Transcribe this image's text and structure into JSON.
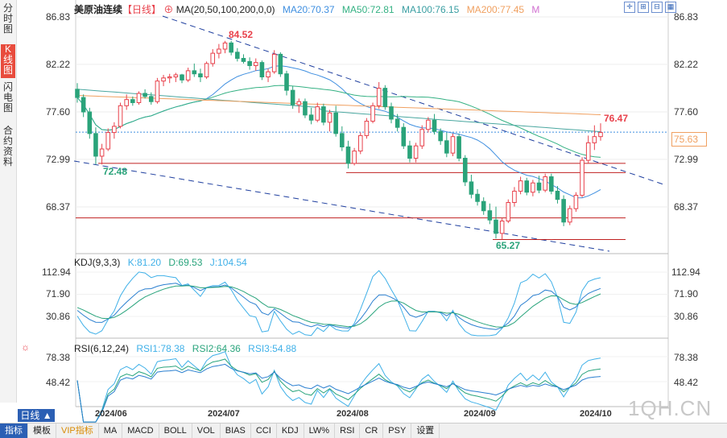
{
  "side_tabs": [
    "分时图",
    "K线图",
    "闪电图",
    "合约资料"
  ],
  "header": {
    "name": "美原油连续",
    "period": "【日线】",
    "ma_label": "MA(20,50,100,200,0,0)",
    "ma20": "MA20:70.37",
    "ma50": "MA50:72.81",
    "ma100": "MA100:76.15",
    "ma200": "MA200:77.45",
    "ma_extra": "M"
  },
  "price_axis": [
    "86.83",
    "82.22",
    "77.60",
    "72.99",
    "68.37"
  ],
  "current_price": "75.63",
  "annotations": {
    "high": "84.52",
    "low1": "72.48",
    "low2": "65.27",
    "recent_high": "76.47"
  },
  "kdj": {
    "label": "KDJ(9,3,3)",
    "k": "K:81.20",
    "d": "D:69.53",
    "j": "J:104.54",
    "axis": [
      "112.94",
      "71.90",
      "30.86"
    ]
  },
  "rsi": {
    "label": "RSI(6,12,24)",
    "rsi1": "RSI1:78.38",
    "rsi2": "RSI2:64.36",
    "rsi3": "RSI3:54.88",
    "axis": [
      "78.38",
      "48.42"
    ]
  },
  "x_axis": [
    "2024/06",
    "2024/07",
    "2024/08",
    "2024/09",
    "2024/10"
  ],
  "period_button": "日线 ▲",
  "bottom_tabs": [
    "指标",
    "模板",
    "VIP指标",
    "MA",
    "MACD",
    "BOLL",
    "VOL",
    "BIAS",
    "CCI",
    "KDJ",
    "LW%",
    "RSI",
    "CR",
    "PSY",
    "设置"
  ],
  "watermark": "1QH.CN",
  "colors": {
    "up": "#e8414b",
    "down": "#2aa37a",
    "ma20": "#3f8fe0",
    "ma50": "#34b183",
    "ma100": "#4aa7a0",
    "ma200": "#f0a060",
    "k": "#3fb0e8",
    "d": "#29a47c",
    "j": "#3fb0e8"
  },
  "candles": [
    [
      79.8,
      80.4,
      78.5,
      79.0
    ],
    [
      79.0,
      79.3,
      77.1,
      77.6
    ],
    [
      77.6,
      78.0,
      75.0,
      75.5
    ],
    [
      75.5,
      76.1,
      72.5,
      73.3
    ],
    [
      73.3,
      74.5,
      72.5,
      74.0
    ],
    [
      74.0,
      76.0,
      73.8,
      75.6
    ],
    [
      75.6,
      76.6,
      75.0,
      76.2
    ],
    [
      76.2,
      78.5,
      76.0,
      78.2
    ],
    [
      78.2,
      79.3,
      77.8,
      78.8
    ],
    [
      78.8,
      79.1,
      78.2,
      78.5
    ],
    [
      78.5,
      79.6,
      78.3,
      79.4
    ],
    [
      79.4,
      79.8,
      78.9,
      79.1
    ],
    [
      79.1,
      79.5,
      78.3,
      78.6
    ],
    [
      78.6,
      80.9,
      78.4,
      80.6
    ],
    [
      80.6,
      81.2,
      80.1,
      80.9
    ],
    [
      80.9,
      81.3,
      80.4,
      81.0
    ],
    [
      81.0,
      81.4,
      80.5,
      81.2
    ],
    [
      81.2,
      81.3,
      80.4,
      80.7
    ],
    [
      80.7,
      81.9,
      80.5,
      81.6
    ],
    [
      81.6,
      82.3,
      81.0,
      81.3
    ],
    [
      81.3,
      81.8,
      80.5,
      81.0
    ],
    [
      81.0,
      82.5,
      80.8,
      82.3
    ],
    [
      82.3,
      83.7,
      82.0,
      83.3
    ],
    [
      83.3,
      84.2,
      82.8,
      83.7
    ],
    [
      83.7,
      84.5,
      83.3,
      84.3
    ],
    [
      84.3,
      84.5,
      83.1,
      83.4
    ],
    [
      83.4,
      83.8,
      82.5,
      82.8
    ],
    [
      82.8,
      83.2,
      82.3,
      82.5
    ],
    [
      82.5,
      82.9,
      81.7,
      82.1
    ],
    [
      82.1,
      82.8,
      81.6,
      82.4
    ],
    [
      82.4,
      82.6,
      80.7,
      81.0
    ],
    [
      81.0,
      81.8,
      80.5,
      81.5
    ],
    [
      81.5,
      83.6,
      81.3,
      83.2
    ],
    [
      83.2,
      83.4,
      81.0,
      81.3
    ],
    [
      81.3,
      81.6,
      79.2,
      79.7
    ],
    [
      79.7,
      80.1,
      77.9,
      78.3
    ],
    [
      78.3,
      78.9,
      77.5,
      78.6
    ],
    [
      78.6,
      78.9,
      77.0,
      77.3
    ],
    [
      77.3,
      78.0,
      76.4,
      76.8
    ],
    [
      76.8,
      78.5,
      76.6,
      78.1
    ],
    [
      78.1,
      78.4,
      76.3,
      76.6
    ],
    [
      76.6,
      77.8,
      75.7,
      77.5
    ],
    [
      77.5,
      78.2,
      75.2,
      75.5
    ],
    [
      75.5,
      76.2,
      73.8,
      74.2
    ],
    [
      74.2,
      74.8,
      72.1,
      72.6
    ],
    [
      72.6,
      74.1,
      72.4,
      73.8
    ],
    [
      73.8,
      75.6,
      73.5,
      75.3
    ],
    [
      75.3,
      77.0,
      75.0,
      76.7
    ],
    [
      76.7,
      78.5,
      76.5,
      78.2
    ],
    [
      78.2,
      80.5,
      77.9,
      79.9
    ],
    [
      79.9,
      80.2,
      77.8,
      78.1
    ],
    [
      78.1,
      78.5,
      76.5,
      76.9
    ],
    [
      76.9,
      77.4,
      75.7,
      76.1
    ],
    [
      76.1,
      76.5,
      74.0,
      74.3
    ],
    [
      74.3,
      74.8,
      72.7,
      73.1
    ],
    [
      73.1,
      74.6,
      72.7,
      74.3
    ],
    [
      74.3,
      76.3,
      74.0,
      75.9
    ],
    [
      75.9,
      77.1,
      75.6,
      76.8
    ],
    [
      76.8,
      77.4,
      75.4,
      75.7
    ],
    [
      75.7,
      76.0,
      74.4,
      74.8
    ],
    [
      74.8,
      75.6,
      73.2,
      73.6
    ],
    [
      73.6,
      75.5,
      73.3,
      75.2
    ],
    [
      75.2,
      75.5,
      72.8,
      73.1
    ],
    [
      73.1,
      73.4,
      70.4,
      70.8
    ],
    [
      70.8,
      71.5,
      69.2,
      69.6
    ],
    [
      69.6,
      70.1,
      68.5,
      68.9
    ],
    [
      68.9,
      69.3,
      67.6,
      68.0
    ],
    [
      68.0,
      68.7,
      66.7,
      67.1
    ],
    [
      67.1,
      68.4,
      65.3,
      65.8
    ],
    [
      65.8,
      67.3,
      65.2,
      67.0
    ],
    [
      67.0,
      69.1,
      66.8,
      68.8
    ],
    [
      68.8,
      70.3,
      68.4,
      69.9
    ],
    [
      69.9,
      71.3,
      69.6,
      70.9
    ],
    [
      70.9,
      71.2,
      69.5,
      69.8
    ],
    [
      69.8,
      71.0,
      69.4,
      70.7
    ],
    [
      70.7,
      71.4,
      69.7,
      70.0
    ],
    [
      70.0,
      71.6,
      69.8,
      71.3
    ],
    [
      71.3,
      71.6,
      69.6,
      69.9
    ],
    [
      69.9,
      70.4,
      68.7,
      69.1
    ],
    [
      69.1,
      69.5,
      66.5,
      66.9
    ],
    [
      66.9,
      68.5,
      66.6,
      68.2
    ],
    [
      68.2,
      69.8,
      67.9,
      69.5
    ],
    [
      69.5,
      73.2,
      69.3,
      72.9
    ],
    [
      72.9,
      75.3,
      72.6,
      74.6
    ],
    [
      74.6,
      76.3,
      73.9,
      75.2
    ],
    [
      75.2,
      76.5,
      74.8,
      75.6
    ]
  ]
}
